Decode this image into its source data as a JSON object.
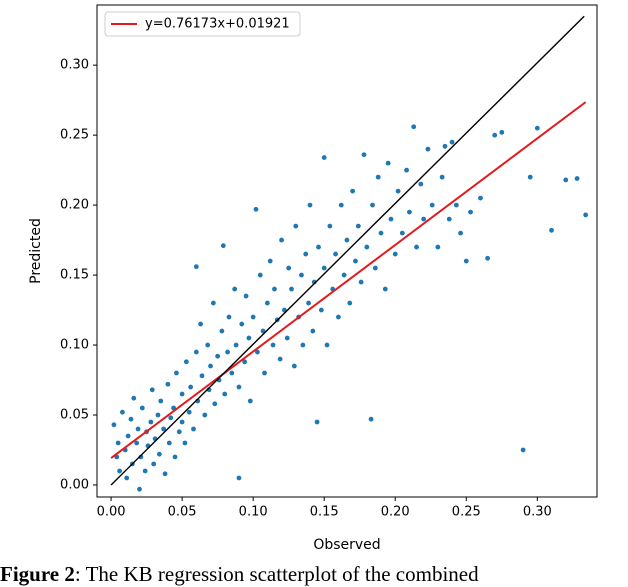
{
  "chart_data": {
    "type": "scatter",
    "x_label": "Observed",
    "y_label": "Predicted",
    "color": "#1f77b4",
    "xlim": [
      -0.0099,
      0.342
    ],
    "ylim": [
      -0.0086,
      0.343
    ],
    "xticks": [
      {
        "value": 0,
        "label": "0.00"
      },
      {
        "value": 0.05,
        "label": "0.05"
      },
      {
        "value": 0.1,
        "label": "0.10"
      },
      {
        "value": 0.15,
        "label": "0.15"
      },
      {
        "value": 0.2,
        "label": "0.20"
      },
      {
        "value": 0.25,
        "label": "0.25"
      },
      {
        "value": 0.3,
        "label": "0.30"
      }
    ],
    "yticks": [
      {
        "value": 0,
        "label": "0.00"
      },
      {
        "value": 0.05,
        "label": "0.05"
      },
      {
        "value": 0.1,
        "label": "0.10"
      },
      {
        "value": 0.15,
        "label": "0.15"
      },
      {
        "value": 0.2,
        "label": "0.20"
      },
      {
        "value": 0.25,
        "label": "0.25"
      },
      {
        "value": 0.3,
        "label": "0.30"
      }
    ],
    "legend": "upper left",
    "lines": [
      {
        "name": "y=0.76173x+0.01921",
        "color": "#e41a1c",
        "x": [
          0,
          0.334
        ],
        "y": [
          0.01921,
          0.2736
        ]
      },
      {
        "color": "#000000",
        "x": [
          0,
          0.333
        ],
        "y": [
          0,
          0.335
        ]
      }
    ],
    "x": [
      0.002,
      0.004,
      0.005,
      0.006,
      0.008,
      0.01,
      0.011,
      0.012,
      0.014,
      0.015,
      0.016,
      0.018,
      0.019,
      0.02,
      0.021,
      0.022,
      0.024,
      0.025,
      0.026,
      0.028,
      0.029,
      0.03,
      0.031,
      0.033,
      0.034,
      0.035,
      0.037,
      0.038,
      0.04,
      0.041,
      0.042,
      0.044,
      0.045,
      0.046,
      0.048,
      0.05,
      0.05,
      0.052,
      0.053,
      0.055,
      0.056,
      0.058,
      0.06,
      0.06,
      0.061,
      0.063,
      0.064,
      0.066,
      0.068,
      0.069,
      0.07,
      0.072,
      0.073,
      0.075,
      0.076,
      0.078,
      0.079,
      0.08,
      0.082,
      0.083,
      0.085,
      0.087,
      0.088,
      0.09,
      0.09,
      0.092,
      0.094,
      0.095,
      0.097,
      0.098,
      0.1,
      0.102,
      0.103,
      0.105,
      0.107,
      0.108,
      0.11,
      0.112,
      0.114,
      0.115,
      0.117,
      0.119,
      0.12,
      0.122,
      0.124,
      0.125,
      0.127,
      0.129,
      0.13,
      0.132,
      0.134,
      0.135,
      0.137,
      0.139,
      0.14,
      0.142,
      0.143,
      0.145,
      0.146,
      0.148,
      0.15,
      0.15,
      0.152,
      0.154,
      0.156,
      0.158,
      0.16,
      0.162,
      0.164,
      0.166,
      0.168,
      0.17,
      0.172,
      0.174,
      0.176,
      0.178,
      0.18,
      0.183,
      0.184,
      0.186,
      0.188,
      0.19,
      0.193,
      0.195,
      0.197,
      0.2,
      0.202,
      0.205,
      0.208,
      0.21,
      0.213,
      0.215,
      0.218,
      0.22,
      0.223,
      0.226,
      0.23,
      0.233,
      0.235,
      0.238,
      0.24,
      0.243,
      0.246,
      0.25,
      0.253,
      0.26,
      0.265,
      0.27,
      0.275,
      0.29,
      0.295,
      0.3,
      0.31,
      0.32,
      0.328,
      0.334
    ],
    "values": [
      0.043,
      0.02,
      0.03,
      0.01,
      0.052,
      0.025,
      0.005,
      0.035,
      0.047,
      0.015,
      0.062,
      0.03,
      0.04,
      -0.003,
      0.02,
      0.055,
      0.01,
      0.038,
      0.028,
      0.045,
      0.068,
      0.015,
      0.033,
      0.05,
      0.022,
      0.06,
      0.04,
      0.008,
      0.072,
      0.03,
      0.048,
      0.055,
      0.02,
      0.08,
      0.038,
      0.065,
      0.045,
      0.03,
      0.088,
      0.052,
      0.07,
      0.04,
      0.095,
      0.156,
      0.06,
      0.115,
      0.078,
      0.05,
      0.1,
      0.068,
      0.085,
      0.13,
      0.058,
      0.092,
      0.075,
      0.11,
      0.171,
      0.065,
      0.095,
      0.12,
      0.08,
      0.14,
      0.1,
      0.005,
      0.07,
      0.115,
      0.088,
      0.135,
      0.105,
      0.06,
      0.12,
      0.197,
      0.095,
      0.15,
      0.11,
      0.08,
      0.13,
      0.16,
      0.1,
      0.14,
      0.118,
      0.09,
      0.175,
      0.125,
      0.105,
      0.155,
      0.14,
      0.085,
      0.185,
      0.12,
      0.15,
      0.1,
      0.165,
      0.13,
      0.2,
      0.11,
      0.145,
      0.045,
      0.17,
      0.125,
      0.234,
      0.155,
      0.1,
      0.185,
      0.14,
      0.165,
      0.12,
      0.2,
      0.15,
      0.175,
      0.13,
      0.21,
      0.16,
      0.185,
      0.145,
      0.236,
      0.17,
      0.047,
      0.2,
      0.155,
      0.22,
      0.18,
      0.14,
      0.23,
      0.19,
      0.165,
      0.21,
      0.18,
      0.225,
      0.195,
      0.256,
      0.17,
      0.215,
      0.19,
      0.24,
      0.2,
      0.17,
      0.22,
      0.242,
      0.19,
      0.245,
      0.2,
      0.18,
      0.16,
      0.195,
      0.205,
      0.162,
      0.25,
      0.252,
      0.025,
      0.22,
      0.255,
      0.182,
      0.218,
      0.219,
      0.193
    ]
  },
  "caption": {
    "label": "Figure 2",
    "text": ": The KB regression scatterplot of the combined"
  }
}
